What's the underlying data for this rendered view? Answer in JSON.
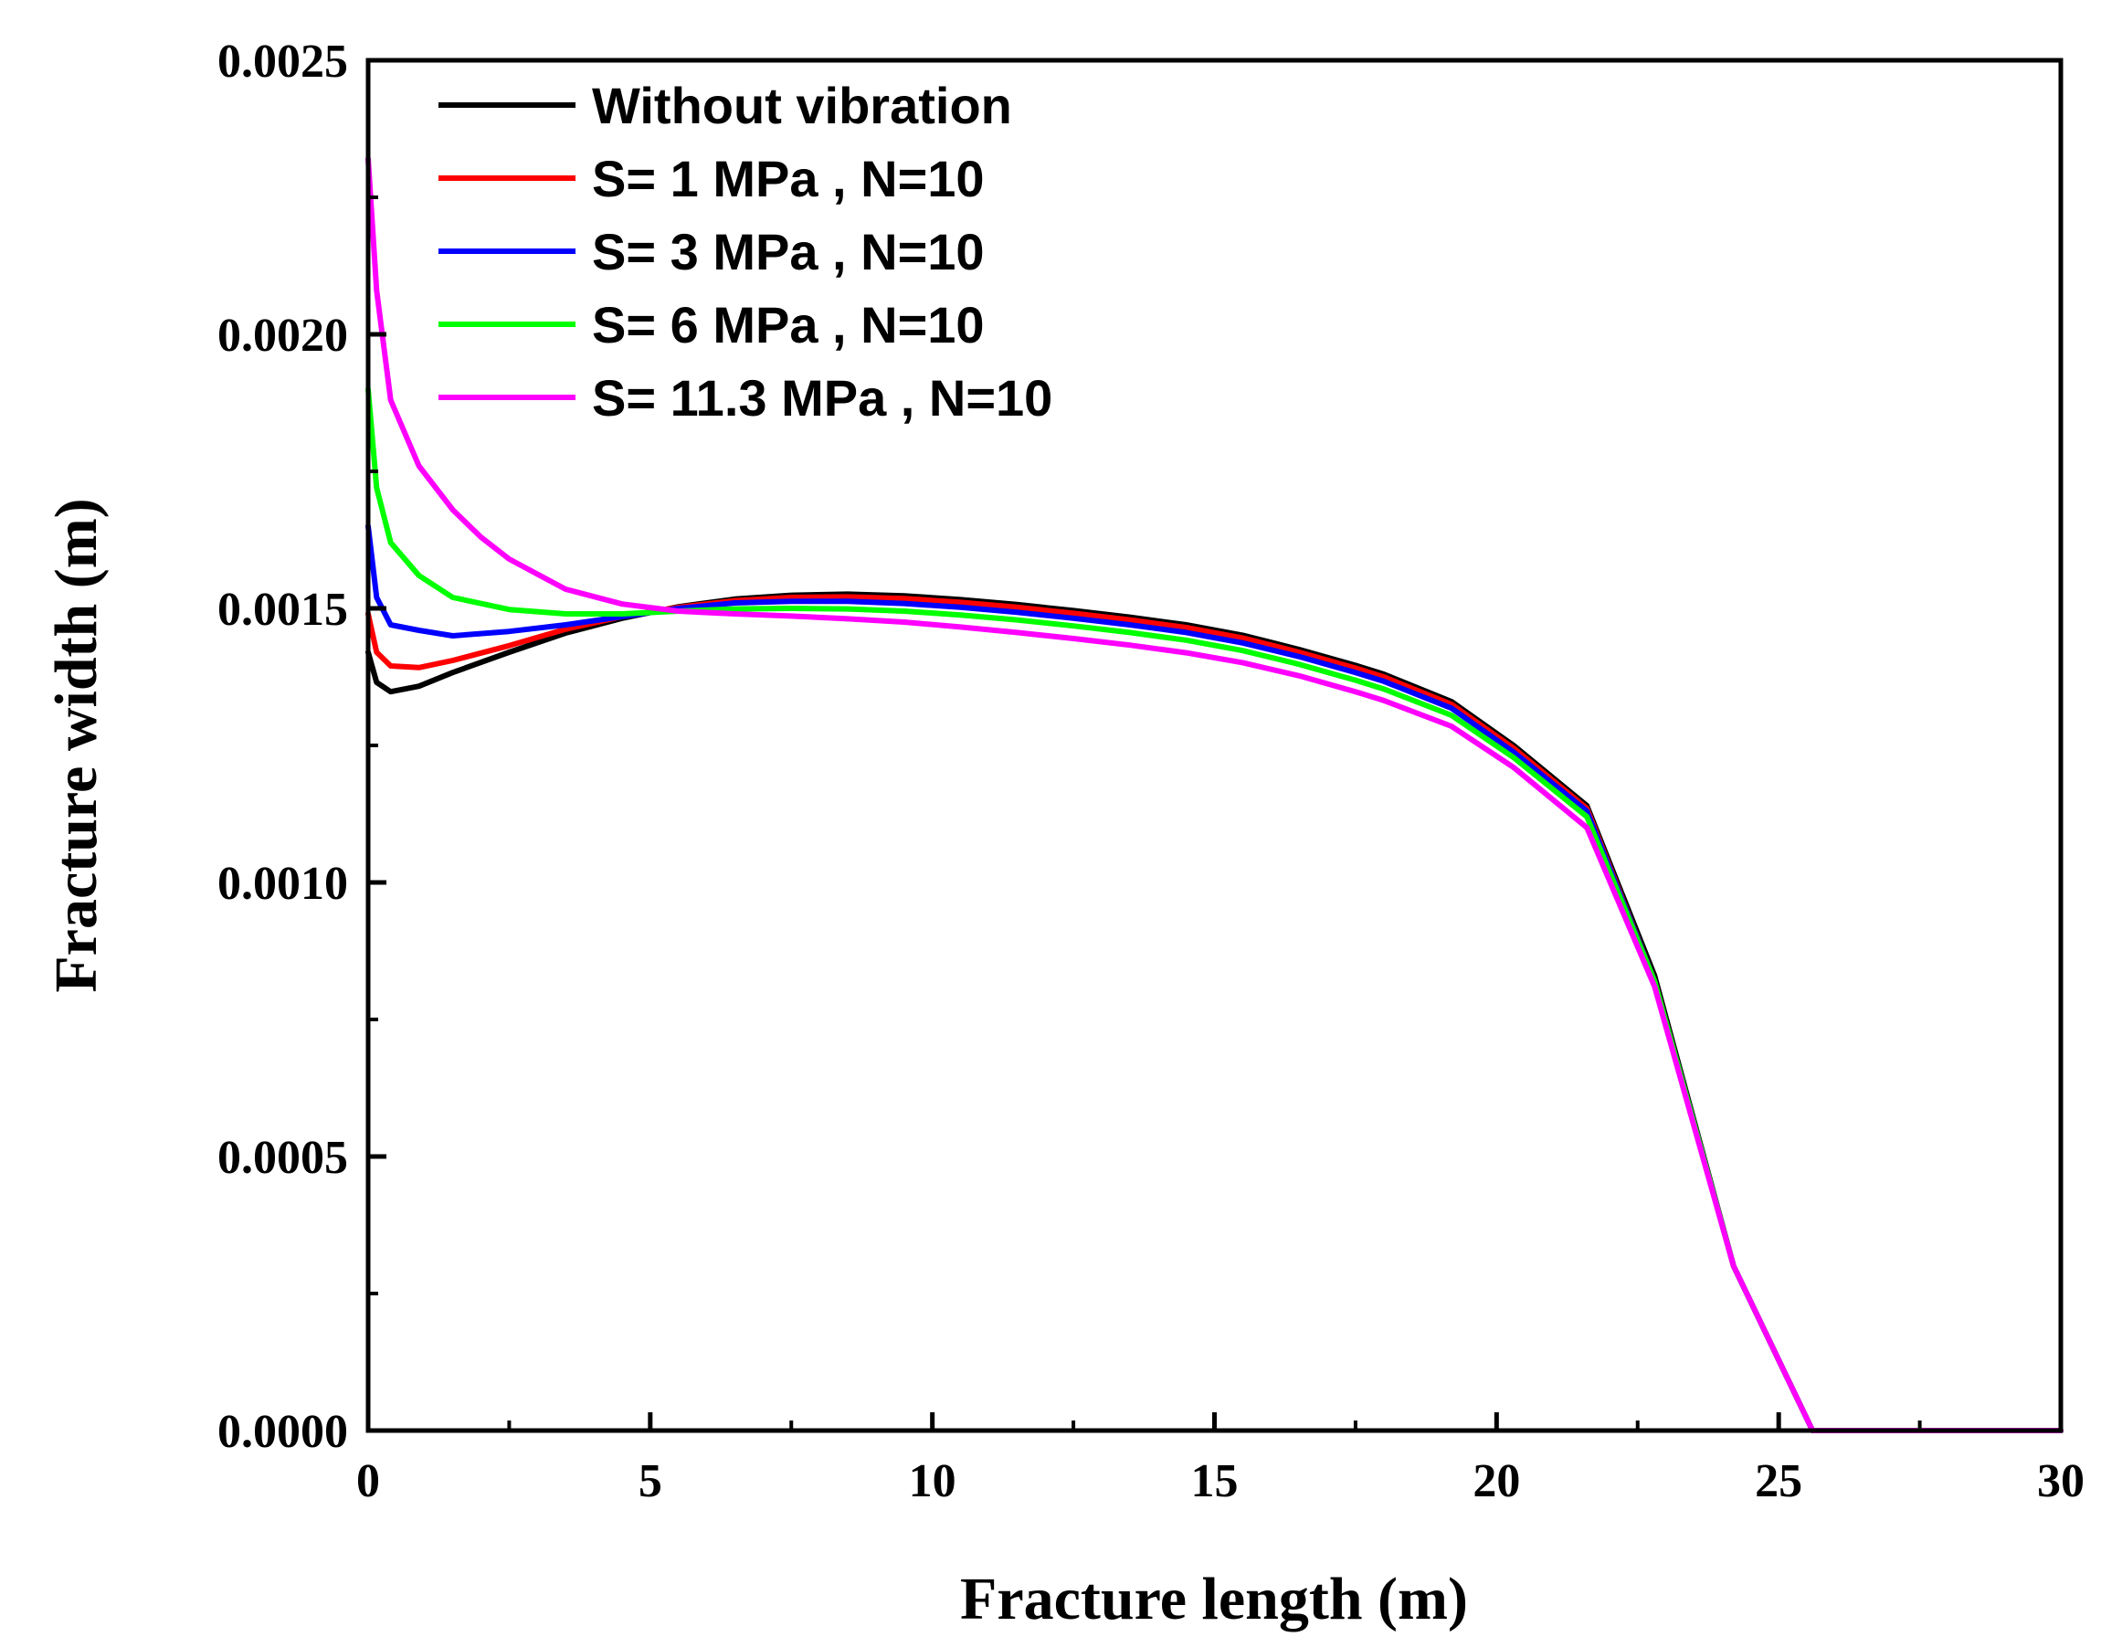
{
  "chart_data": {
    "type": "line",
    "title": "",
    "xlabel": "Fracture length (m)",
    "ylabel": "Fracture width (m)",
    "xlim": [
      0,
      30
    ],
    "ylim": [
      0,
      0.0025
    ],
    "xticks": [
      0,
      5,
      10,
      15,
      20,
      25,
      30
    ],
    "xtick_labels": [
      "0",
      "5",
      "10",
      "15",
      "20",
      "25",
      "30"
    ],
    "yticks": [
      0,
      0.0005,
      0.001,
      0.0015,
      0.002,
      0.0025
    ],
    "ytick_labels": [
      "0.0000",
      "0.0005",
      "0.0010",
      "0.0015",
      "0.0020",
      "0.0025"
    ],
    "grid": false,
    "legend_position": "top-left",
    "series": [
      {
        "name": "Without vibration",
        "color": "#000000",
        "x": [
          0,
          0.15,
          0.4,
          0.9,
          1.5,
          2.5,
          3.5,
          4.5,
          5.5,
          6.5,
          7.5,
          8.5,
          9.5,
          10.5,
          11.5,
          12.5,
          13.5,
          14.5,
          15.5,
          16.5,
          17.5,
          18,
          19.2,
          20.3,
          21.6,
          22.8,
          24.2,
          25.6,
          26,
          28,
          30
        ],
        "y": [
          0.00142,
          0.001365,
          0.001348,
          0.001358,
          0.001383,
          0.00142,
          0.001455,
          0.001482,
          0.001503,
          0.001517,
          0.001524,
          0.001526,
          0.001523,
          0.001516,
          0.001507,
          0.001496,
          0.001484,
          0.00147,
          0.001451,
          0.001425,
          0.001396,
          0.00138,
          0.00133,
          0.00125,
          0.00114,
          0.00083,
          0.0003,
          0.0,
          0.0,
          0.0,
          0.0
        ]
      },
      {
        "name": "S= 1 MPa , N=10",
        "color": "#ff0000",
        "x": [
          0,
          0.15,
          0.4,
          0.9,
          1.5,
          2.5,
          3.5,
          4.5,
          5.5,
          6.5,
          7.5,
          8.5,
          9.5,
          10.5,
          11.5,
          12.5,
          13.5,
          14.5,
          15.5,
          16.5,
          17.5,
          18,
          19.2,
          20.3,
          21.6,
          22.8,
          24.2,
          25.6,
          26,
          28,
          30
        ],
        "y": [
          0.00149,
          0.00142,
          0.001395,
          0.001392,
          0.001405,
          0.001432,
          0.001462,
          0.001485,
          0.001502,
          0.001514,
          0.00152,
          0.001521,
          0.001518,
          0.001511,
          0.001502,
          0.001491,
          0.001479,
          0.001465,
          0.001446,
          0.00142,
          0.001391,
          0.001375,
          0.001325,
          0.001245,
          0.001135,
          0.00082,
          0.0003,
          0.0,
          0.0,
          0.0,
          0.0
        ]
      },
      {
        "name": "S= 3 MPa , N=10",
        "color": "#0000ff",
        "x": [
          0,
          0.15,
          0.4,
          0.9,
          1.5,
          2.5,
          3.5,
          4.5,
          5.5,
          6.5,
          7.5,
          8.5,
          9.5,
          10.5,
          11.5,
          12.5,
          13.5,
          14.5,
          15.5,
          16.5,
          17.5,
          18,
          19.2,
          20.3,
          21.6,
          22.8,
          24.2,
          25.6,
          26,
          28,
          30
        ],
        "y": [
          0.00165,
          0.00152,
          0.00147,
          0.00146,
          0.00145,
          0.001458,
          0.00147,
          0.001485,
          0.0015,
          0.00151,
          0.001513,
          0.001513,
          0.001509,
          0.001502,
          0.001493,
          0.001482,
          0.00147,
          0.001456,
          0.001437,
          0.001412,
          0.001383,
          0.001367,
          0.001318,
          0.001238,
          0.00113,
          0.00082,
          0.0003,
          0.0,
          0.0,
          0.0,
          0.0
        ]
      },
      {
        "name": "S= 6 MPa , N=10",
        "color": "#00ff00",
        "x": [
          0,
          0.15,
          0.4,
          0.9,
          1.5,
          2.5,
          3.5,
          4.5,
          5.5,
          6.5,
          7.5,
          8.5,
          9.5,
          10.5,
          11.5,
          12.5,
          13.5,
          14.5,
          15.5,
          16.5,
          17.5,
          18,
          19.2,
          20.3,
          21.6,
          22.8,
          24.2,
          25.6,
          26,
          28,
          30
        ],
        "y": [
          0.0019,
          0.00172,
          0.00162,
          0.00156,
          0.00152,
          0.001498,
          0.00149,
          0.00149,
          0.001495,
          0.001499,
          0.0015,
          0.001499,
          0.001495,
          0.001488,
          0.001479,
          0.001468,
          0.001456,
          0.001442,
          0.001423,
          0.001398,
          0.001369,
          0.001353,
          0.001305,
          0.001228,
          0.00112,
          0.00082,
          0.0003,
          0.0,
          0.0,
          0.0,
          0.0
        ]
      },
      {
        "name": "S= 11.3 MPa , N=10",
        "color": "#ff00ff",
        "x": [
          0,
          0.15,
          0.4,
          0.9,
          1.5,
          2,
          2.5,
          3.5,
          4.5,
          5.5,
          6.5,
          7.5,
          8.5,
          9.5,
          10.5,
          11.5,
          12.5,
          13.5,
          14.5,
          15.5,
          16.5,
          17.5,
          18,
          19.2,
          20.3,
          21.6,
          22.8,
          24.2,
          25.6,
          26,
          28,
          30
        ],
        "y": [
          0.00232,
          0.00208,
          0.00188,
          0.00176,
          0.00168,
          0.00163,
          0.00159,
          0.001535,
          0.001508,
          0.001495,
          0.00149,
          0.001486,
          0.001481,
          0.001475,
          0.001466,
          0.001456,
          0.001445,
          0.001433,
          0.001419,
          0.001401,
          0.001377,
          0.001348,
          0.001332,
          0.001285,
          0.00121,
          0.0011,
          0.00081,
          0.0003,
          0.0,
          0.0,
          0.0,
          0.0
        ]
      }
    ]
  }
}
